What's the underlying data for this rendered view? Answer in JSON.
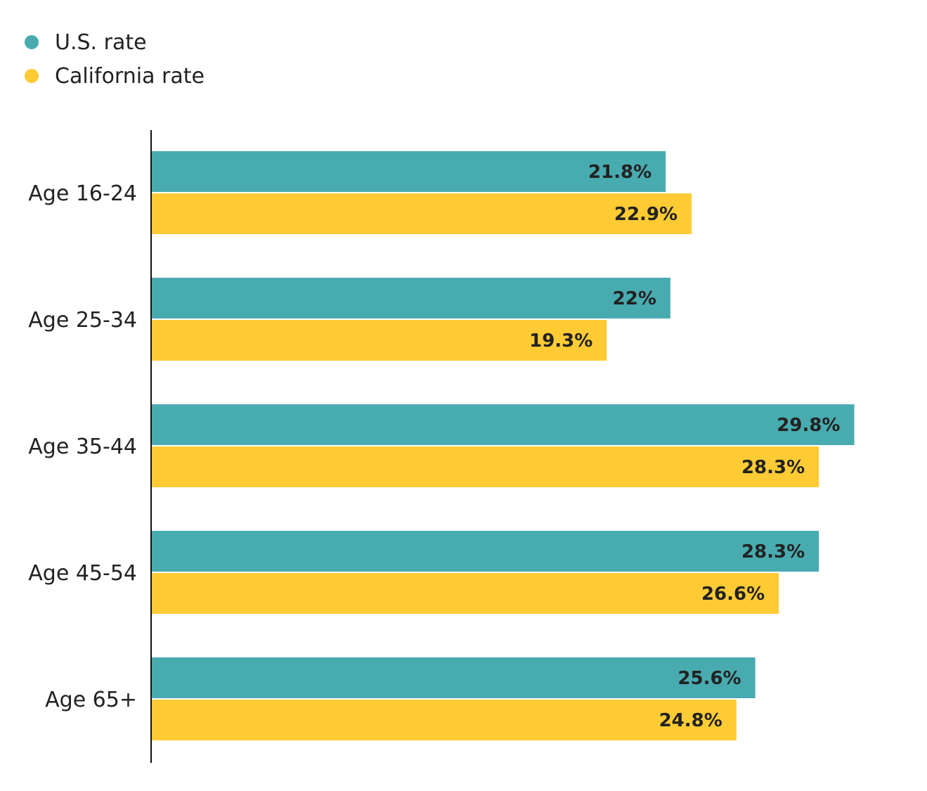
{
  "chart_data": {
    "type": "bar",
    "orientation": "horizontal",
    "categories": [
      "Age 16-24",
      "Age 25-34",
      "Age 35-44",
      "Age 45-54",
      "Age 65+"
    ],
    "series": [
      {
        "name": "U.S. rate",
        "color": "#48abb0",
        "values": [
          21.8,
          22,
          29.8,
          28.3,
          25.6
        ],
        "labels": [
          "21.8%",
          "22%",
          "29.8%",
          "28.3%",
          "25.6%"
        ]
      },
      {
        "name": "California rate",
        "color": "#fecb35",
        "values": [
          22.9,
          19.3,
          28.3,
          26.6,
          24.8
        ],
        "labels": [
          "22.9%",
          "19.3%",
          "28.3%",
          "26.6%",
          "24.8%"
        ]
      }
    ],
    "legend_position": "top-left",
    "grid": false,
    "xlim": [
      0,
      30
    ]
  }
}
